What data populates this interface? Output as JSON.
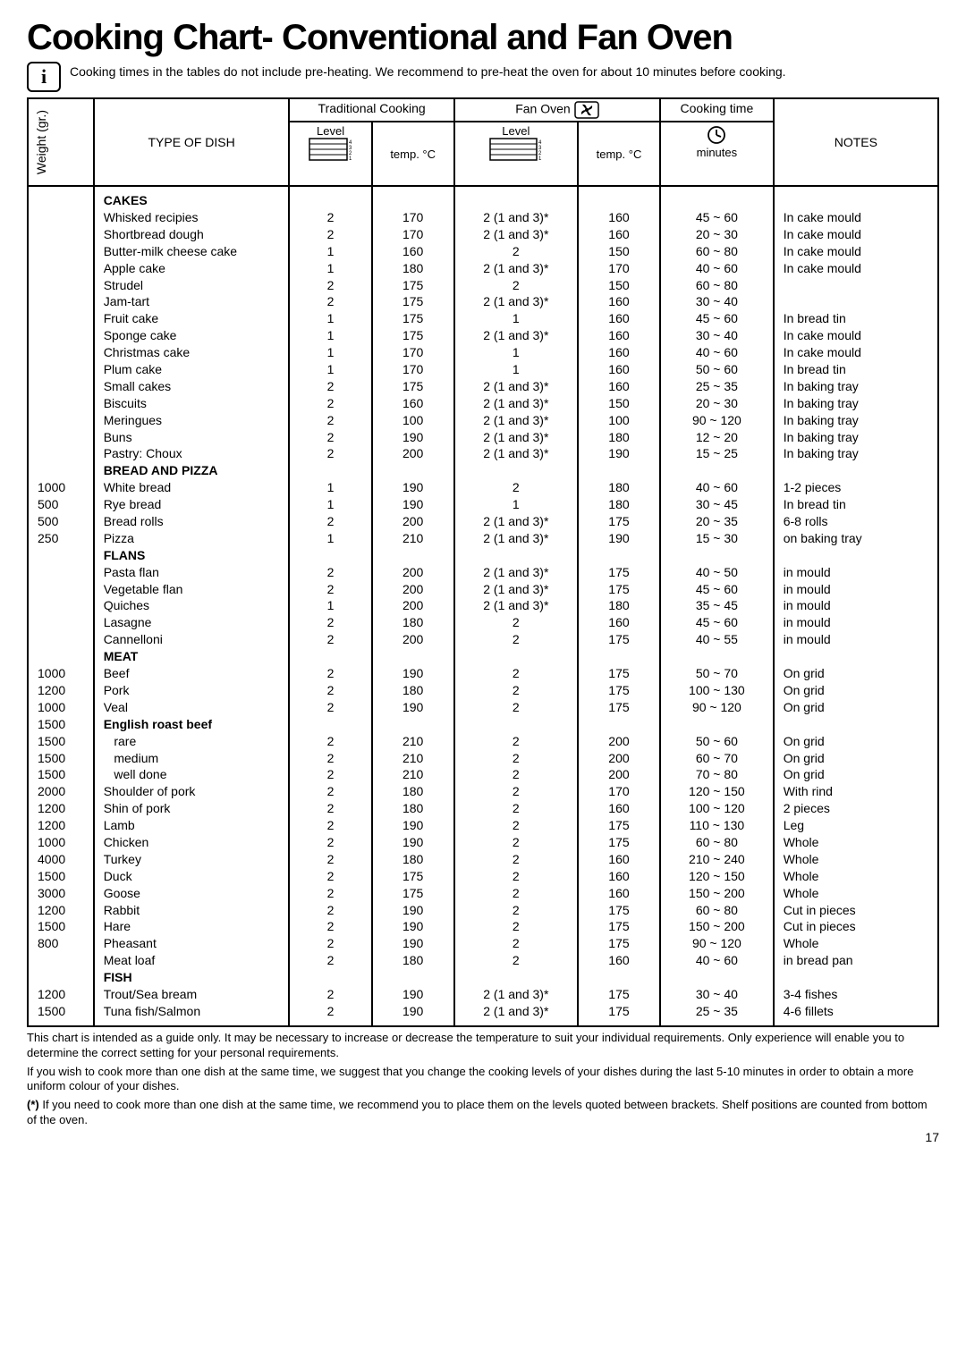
{
  "title": "Cooking Chart- Conventional and Fan Oven",
  "info_text": "Cooking times in the tables do not include pre-heating. We recommend to pre-heat the oven for about 10 minutes before cooking.",
  "headers": {
    "weight": "Weight (gr.)",
    "dish": "TYPE OF DISH",
    "trad_group": "Traditional Cooking",
    "fan_group": "Fan Oven",
    "time_group": "Cooking time",
    "level": "Level",
    "temp": "temp. °C",
    "minutes": "minutes",
    "notes": "NOTES"
  },
  "columns": {
    "weight": "\n\n\n\n\n\n\n\n\n\n\n\n\n\n\n\n\n1000\n500\n500\n250\n\n\n\n\n\n\n\n1000\n1200\n1000\n1500\n1500\n1500\n1500\n2000\n1200\n1200\n1000\n4000\n1500\n3000\n1200\n1500\n800\n\n\n1200\n1500",
    "dish": "CAKES\nWhisked recipies\nShortbread dough\nButter-milk cheese cake\nApple cake\nStrudel\nJam-tart\nFruit cake\nSponge cake\nChristmas cake\nPlum cake\nSmall cakes\nBiscuits\nMeringues\nBuns\nPastry: Choux\nBREAD AND PIZZA\nWhite bread\nRye bread\nBread rolls\nPizza\nFLANS\nPasta flan\nVegetable flan\nQuiches\nLasagne\nCannelloni\nMEAT\nBeef\nPork\nVeal\nEnglish roast beef\n   rare\n   medium\n   well done\nShoulder of pork\nShin of pork\nLamb\nChicken\nTurkey\nDuck\nGoose\nRabbit\nHare\nPheasant\nMeat loaf\nFISH\nTrout/Sea bream\nTuna fish/Salmon",
    "dish_bold_lines": [
      0,
      16,
      21,
      27,
      31,
      46
    ],
    "trad_level": "\n2\n2\n1\n1\n2\n2\n1\n1\n1\n1\n2\n2\n2\n2\n2\n\n1\n1\n2\n1\n\n2\n2\n1\n2\n2\n\n2\n2\n2\n\n2\n2\n2\n2\n2\n2\n2\n2\n2\n2\n2\n2\n2\n2\n\n2\n2",
    "trad_temp": "\n170\n170\n160\n180\n175\n175\n175\n175\n170\n170\n175\n160\n100\n190\n200\n\n190\n190\n200\n210\n\n200\n200\n200\n180\n200\n\n190\n180\n190\n\n210\n210\n210\n180\n180\n190\n190\n180\n175\n175\n190\n190\n190\n180\n\n190\n190",
    "fan_level": "\n2 (1 and 3)*\n2 (1 and 3)*\n2\n2 (1 and 3)*\n2\n2 (1 and 3)*\n1\n2 (1 and 3)*\n1\n1\n2 (1 and 3)*\n2 (1 and 3)*\n2 (1 and 3)*\n2 (1 and 3)*\n2 (1 and 3)*\n\n2\n1\n2 (1 and 3)*\n2 (1 and 3)*\n\n2 (1 and 3)*\n2 (1 and 3)*\n2 (1 and 3)*\n2\n2\n\n2\n2\n2\n\n2\n2\n2\n2\n2\n2\n2\n2\n2\n2\n2\n2\n2\n2\n\n2 (1 and 3)*\n2 (1 and 3)*",
    "fan_temp": "\n160\n160\n150\n170\n150\n160\n160\n160\n160\n160\n160\n150\n100\n180\n190\n\n180\n180\n175\n190\n\n175\n175\n180\n160\n175\n\n175\n175\n175\n\n200\n200\n200\n170\n160\n175\n175\n160\n160\n160\n175\n175\n175\n160\n\n175\n175",
    "time": "\n45 ~ 60\n20 ~ 30\n60 ~ 80\n40 ~ 60\n60 ~ 80\n30 ~ 40\n45 ~ 60\n30 ~ 40\n40 ~ 60\n50 ~ 60\n25 ~ 35\n20 ~ 30\n90 ~ 120\n12 ~ 20\n15 ~ 25\n\n40 ~ 60\n30 ~ 45\n20 ~ 35\n15 ~ 30\n\n40 ~ 50\n45 ~ 60\n35 ~ 45\n45 ~ 60\n40 ~ 55\n\n50 ~ 70\n100 ~ 130\n90 ~ 120\n\n50 ~ 60\n60 ~ 70\n70 ~ 80\n120 ~ 150\n100 ~ 120\n110 ~ 130\n60 ~ 80\n210 ~ 240\n120 ~ 150\n150 ~ 200\n60 ~ 80\n150 ~ 200\n90 ~ 120\n40 ~ 60\n\n30 ~ 40\n25 ~ 35",
    "notes": "\nIn cake mould\nIn cake mould\nIn cake mould\nIn cake mould\n\n\nIn bread tin\nIn cake mould\nIn cake mould\nIn bread tin\nIn baking tray\nIn baking tray\nIn baking tray\nIn baking tray\nIn baking tray\n\n1-2 pieces\nIn bread tin\n6-8 rolls\non baking tray\n\nin mould\nin mould\nin mould\nin mould\nin mould\n\nOn grid\nOn grid\nOn grid\n\nOn grid\nOn grid\nOn grid\nWith rind\n2 pieces\nLeg\nWhole\nWhole\nWhole\nWhole\nCut in pieces\nCut in pieces\nWhole\nin bread pan\n\n3-4 fishes\n4-6 fillets"
  },
  "footnote1": "This chart is intended as a guide only. It may be necessary to increase or decrease the temperature to suit your individual requirements. Only experience will enable you to determine the correct setting for your personal requirements.",
  "footnote2": "If you wish to cook more than one dish at the same time, we suggest  that you change the cooking levels of your dishes during the last 5-10 minutes in order to obtain a more uniform colour of your dishes.",
  "footnote3_star": "(*)",
  "footnote3": " If you need to cook more than one dish at the same time, we recommend you to place them on the levels quoted between brackets. Shelf positions are counted from bottom of the oven.",
  "page": "17"
}
